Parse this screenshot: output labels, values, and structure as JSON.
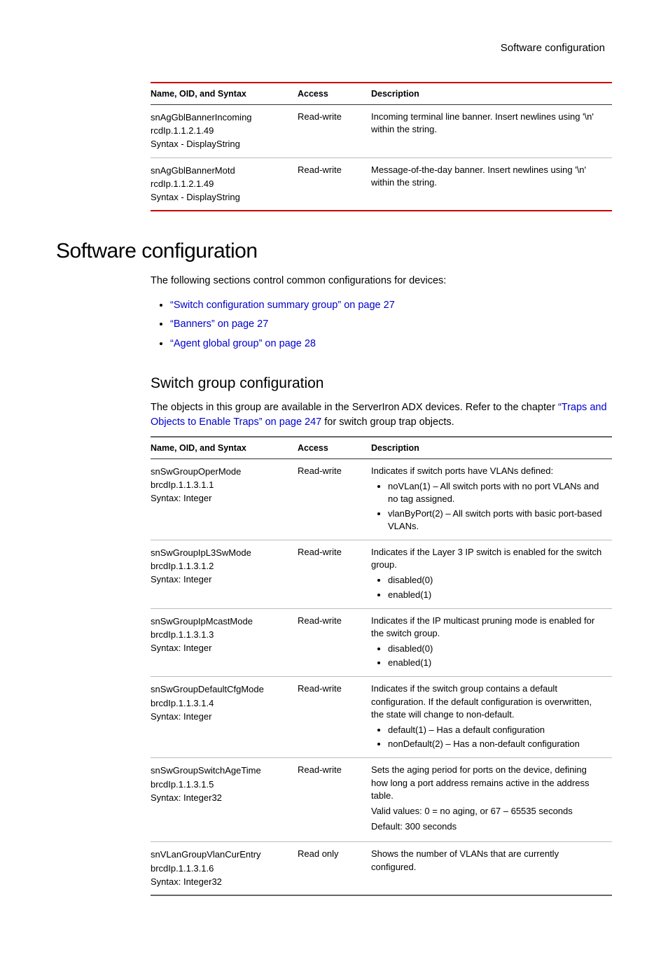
{
  "breadcrumb": "Software configuration",
  "table1": {
    "headers": [
      "Name, OID, and Syntax",
      "Access",
      "Description"
    ],
    "rows": [
      {
        "name_lines": [
          "snAgGblBannerIncoming",
          "rcdIp.1.1.2.1.49",
          "Syntax - DisplayString"
        ],
        "access": "Read-write",
        "desc": "Incoming terminal line banner. Insert newlines using '\\n' within the string."
      },
      {
        "name_lines": [
          "snAgGblBannerMotd",
          "rcdIp.1.1.2.1.49",
          "Syntax - DisplayString"
        ],
        "access": "Read-write",
        "desc": "Message-of-the-day banner. Insert newlines using '\\n' within the string."
      }
    ]
  },
  "h1": "Software configuration",
  "intro_p": "The following sections control common configurations for devices:",
  "links": [
    "“Switch configuration summary group” on page 27",
    "“Banners” on page 27",
    "“Agent global group” on page 28"
  ],
  "h2": "Switch group configuration",
  "p2_pre": "The objects in this group are available in the ServerIron ADX devices. Refer to the chapter ",
  "p2_link": "“Traps and Objects to Enable Traps” on page 247",
  "p2_post": " for switch group trap objects.",
  "table2": {
    "headers": [
      "Name, OID, and Syntax",
      "Access",
      "Description"
    ],
    "rows": [
      {
        "name_lines": [
          "snSwGroupOperMode",
          "brcdIp.1.1.3.1.1",
          "Syntax: Integer"
        ],
        "access": "Read-write",
        "desc_pre": "Indicates if switch ports have VLANs defined:",
        "bullets": [
          "noVLan(1) – All switch ports with no port VLANs and no tag assigned.",
          "vlanByPort(2) – All switch ports with basic port-based VLANs."
        ]
      },
      {
        "name_lines": [
          "snSwGroupIpL3SwMode",
          "brcdIp.1.1.3.1.2",
          "Syntax: Integer"
        ],
        "access": "Read-write",
        "desc_pre": "Indicates if the Layer 3 IP switch is enabled for the switch group.",
        "bullets": [
          "disabled(0)",
          "enabled(1)"
        ]
      },
      {
        "name_lines": [
          "snSwGroupIpMcastMode",
          "brcdIp.1.1.3.1.3",
          "Syntax: Integer"
        ],
        "access": "Read-write",
        "desc_pre": "Indicates if the IP multicast pruning mode is enabled for the switch group.",
        "bullets": [
          "disabled(0)",
          "enabled(1)"
        ]
      },
      {
        "name_lines": [
          "snSwGroupDefaultCfgMode",
          "brcdIp.1.1.3.1.4",
          "Syntax: Integer"
        ],
        "access": "Read-write",
        "desc_pre": "Indicates if the switch group contains a default configuration. If the default configuration is overwritten, the state will change to non-default.",
        "bullets": [
          "default(1) – Has a default configuration",
          "nonDefault(2) – Has a non-default configuration"
        ]
      },
      {
        "name_lines": [
          "snSwGroupSwitchAgeTime",
          "brcdIp.1.1.3.1.5",
          "Syntax: Integer32"
        ],
        "access": "Read-write",
        "desc_lines": [
          "Sets the aging period for ports on the device, defining how long a port address remains active in the address table.",
          "Valid values: 0 = no aging, or 67 – 65535 seconds",
          "Default: 300 seconds"
        ]
      },
      {
        "name_lines": [
          "snVLanGroupVlanCurEntry",
          "brcdIp.1.1.3.1.6",
          "Syntax: Integer32"
        ],
        "access": "Read only",
        "desc_pre": "Shows the number of VLANs that are currently configured."
      }
    ]
  }
}
